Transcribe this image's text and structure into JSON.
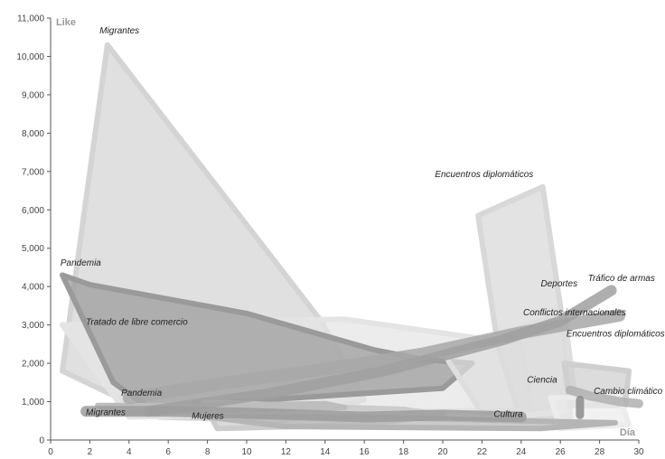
{
  "chart_data": {
    "type": "area",
    "title": "",
    "xlabel": "Día",
    "ylabel": "Like",
    "xlim": [
      0,
      30
    ],
    "ylim": [
      0,
      11000
    ],
    "xticks": [
      0,
      2,
      4,
      6,
      8,
      10,
      12,
      14,
      16,
      18,
      20,
      22,
      24,
      26,
      28,
      30
    ],
    "yticks": [
      0,
      1000,
      2000,
      3000,
      4000,
      5000,
      6000,
      7000,
      8000,
      9000,
      10000,
      11000
    ],
    "ytick_labels": [
      "0",
      "1,000",
      "2,000",
      "3,000",
      "4,000",
      "5,000",
      "6,000",
      "7,000",
      "8,000",
      "9,000",
      "10,000",
      "11,000"
    ],
    "grid": false,
    "legend": "none",
    "series": [
      {
        "label": "Migrantes",
        "color": "#d4d4d4",
        "points": [
          [
            0.6,
            1800
          ],
          [
            2.9,
            10300
          ],
          [
            13.8,
            3100
          ],
          [
            16,
            1050
          ],
          [
            12,
            500
          ],
          [
            5.5,
            600
          ]
        ]
      },
      {
        "label": "Tratado de libre comercio",
        "color": "#e4e4e4",
        "points": [
          [
            0.6,
            3000
          ],
          [
            15,
            3150
          ],
          [
            24,
            2500
          ],
          [
            24.5,
            800
          ],
          [
            4,
            600
          ]
        ]
      },
      {
        "label": "Pandemia",
        "color": "#9a9a9a",
        "points": [
          [
            0.6,
            4300
          ],
          [
            2,
            4050
          ],
          [
            10,
            3300
          ],
          [
            16.5,
            2350
          ],
          [
            19,
            2100
          ],
          [
            21.5,
            2000
          ],
          [
            20,
            1350
          ],
          [
            6.5,
            900
          ],
          [
            5.4,
            700
          ],
          [
            3.2,
            1500
          ]
        ]
      },
      {
        "label": "Encuentros diplomáticos",
        "color": "#d8d8d8",
        "points": [
          [
            21.8,
            5850
          ],
          [
            25.1,
            6600
          ],
          [
            26.2,
            2800
          ],
          [
            26.5,
            600
          ],
          [
            24,
            500
          ],
          [
            22.8,
            2500
          ]
        ]
      },
      {
        "label": "Deportes",
        "color": "#dedede",
        "points": [
          [
            20,
            2300
          ],
          [
            26.2,
            3300
          ],
          [
            26.8,
            900
          ],
          [
            22,
            700
          ]
        ]
      },
      {
        "label": "Encuentros diplomáticos",
        "color": "#cfcfcf",
        "points": [
          [
            26.2,
            2000
          ],
          [
            29.5,
            1800
          ],
          [
            29.3,
            900
          ],
          [
            26.5,
            900
          ]
        ]
      },
      {
        "label": "Ciencia",
        "color": "#ececec",
        "points": [
          [
            25.5,
            1100
          ],
          [
            29,
            1150
          ],
          [
            29.5,
            400
          ],
          [
            26,
            300
          ]
        ]
      },
      {
        "label": "Mujeres",
        "color": "#cccccc",
        "points": [
          [
            7.8,
            1000
          ],
          [
            12,
            900
          ],
          [
            18,
            800
          ],
          [
            20,
            650
          ],
          [
            16,
            400
          ],
          [
            8.5,
            300
          ]
        ]
      },
      {
        "label": "Pandemia",
        "color": "#bdbdbd",
        "points": [
          [
            2.4,
            900
          ],
          [
            8,
            900
          ],
          [
            14,
            950
          ],
          [
            15,
            850
          ],
          [
            3.5,
            700
          ]
        ]
      },
      {
        "label": "Cultura",
        "color": "#b5b5b5",
        "points": [
          [
            8,
            600
          ],
          [
            16,
            600
          ],
          [
            24,
            500
          ],
          [
            28.8,
            450
          ],
          [
            25,
            300
          ],
          [
            12,
            350
          ]
        ]
      }
    ],
    "bands": [
      {
        "label": "Conflictos internacionales",
        "color": "#a8a8a8",
        "width": 14,
        "points": [
          [
            4,
            1100
          ],
          [
            9,
            1500
          ],
          [
            14,
            1850
          ],
          [
            19,
            2250
          ],
          [
            24,
            2800
          ],
          [
            29,
            3250
          ]
        ]
      },
      {
        "label": "Tráfico de armas",
        "color": "#a0a0a0",
        "width": 12,
        "points": [
          [
            5,
            750
          ],
          [
            11,
            1200
          ],
          [
            17,
            1800
          ],
          [
            23,
            2600
          ],
          [
            26,
            3100
          ],
          [
            28.6,
            3900
          ]
        ]
      },
      {
        "label": "Migrantes",
        "color": "#9c9c9c",
        "width": 12,
        "points": [
          [
            1.8,
            750
          ],
          [
            6,
            750
          ],
          [
            10,
            700
          ],
          [
            16,
            600
          ],
          [
            20,
            650
          ],
          [
            24,
            600
          ]
        ]
      },
      {
        "label": "Cambio climático",
        "color": "#b0b0b0",
        "width": 10,
        "points": [
          [
            26.5,
            1300
          ],
          [
            27.5,
            1150
          ],
          [
            29,
            1000
          ],
          [
            30,
            950
          ]
        ]
      },
      {
        "label": "Cambio climático",
        "color": "#8c8c8c",
        "width": 9,
        "points": [
          [
            27,
            1050
          ],
          [
            27,
            650
          ]
        ]
      }
    ],
    "annotations": [
      {
        "text": "Migrantes",
        "x": 2.5,
        "y": 10600
      },
      {
        "text": "Encuentros diplomáticos",
        "x": 19.6,
        "y": 6850
      },
      {
        "text": "Pandemia",
        "x": 0.5,
        "y": 4550
      },
      {
        "text": "Deportes",
        "x": 25,
        "y": 4000
      },
      {
        "text": "Tráfico de armas",
        "x": 27.4,
        "y": 4150
      },
      {
        "text": "Tratado de libre comercio",
        "x": 1.8,
        "y": 3000
      },
      {
        "text": "Conflictos internacionales",
        "x": 24.1,
        "y": 3250
      },
      {
        "text": "Encuentros diplomáticos",
        "x": 26.3,
        "y": 2700
      },
      {
        "text": "Ciencia",
        "x": 24.3,
        "y": 1500
      },
      {
        "text": "Cambio climático",
        "x": 27.7,
        "y": 1200
      },
      {
        "text": "Pandemia",
        "x": 3.6,
        "y": 1150
      },
      {
        "text": "Migrantes",
        "x": 1.8,
        "y": 650
      },
      {
        "text": "Mujeres",
        "x": 7.2,
        "y": 550
      },
      {
        "text": "Cultura",
        "x": 22.6,
        "y": 600
      }
    ]
  }
}
